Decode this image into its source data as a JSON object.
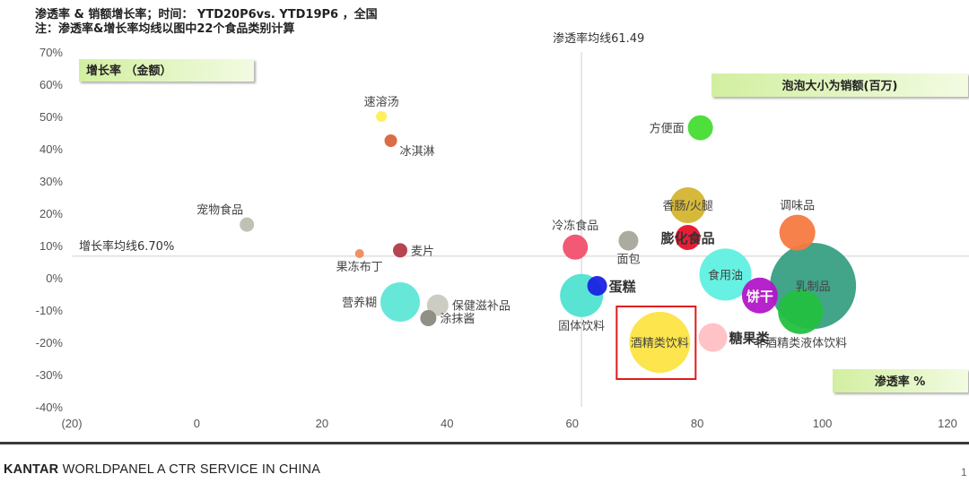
{
  "header": {
    "line1": "渗透率 & 销额增长率；时间： YTD20P6vs. YTD19P6 ，全国",
    "line2": "注：渗透率&增长率均线以图中22个食品类别计算"
  },
  "footer": {
    "brand_bold": "KANTAR",
    "brand_rest": " WORLDPANEL A CTR SERVICE IN CHINA",
    "page_number": "1"
  },
  "colors": {
    "tag_fill_start": "#d8f2a8",
    "tag_fill_end": "#eefadc",
    "highlight_box": "#e01b1b",
    "neg_tick": "#cc0000"
  },
  "chart_data": {
    "type": "scatter",
    "variant": "bubble",
    "title": "",
    "xlabel": "渗透率 %",
    "ylabel": "增长率 （金额）",
    "size_label": "泡泡大小为销额(百万)",
    "xlim": [
      -20,
      120
    ],
    "ylim": [
      -40,
      70
    ],
    "x_ticks": [
      -20,
      0,
      20,
      40,
      60,
      80,
      100,
      120
    ],
    "x_tick_labels": [
      "(20)",
      "0",
      "20",
      "40",
      "60",
      "80",
      "100",
      "120"
    ],
    "y_ticks": [
      -40,
      -30,
      -20,
      -10,
      0,
      10,
      20,
      30,
      40,
      50,
      60,
      70
    ],
    "y_tick_labels": [
      "-40%",
      "-30%",
      "-20%",
      "-10%",
      "0%",
      "10%",
      "20%",
      "30%",
      "40%",
      "50%",
      "60%",
      "70%"
    ],
    "reference_lines": {
      "vertical": {
        "value": 61.49,
        "label": "渗透率均线61.49"
      },
      "horizontal": {
        "value": 6.7,
        "label": "增长率均线6.70%"
      }
    },
    "highlighted": "酒精类饮料",
    "points": [
      {
        "name": "速溶汤",
        "x": 29.5,
        "y": 50,
        "size": 6,
        "color": "#ffee55",
        "label_pos": "top"
      },
      {
        "name": "冰淇淋",
        "x": 31,
        "y": 42.5,
        "size": 7,
        "color": "#d9643a",
        "label_pos": "bottom-right"
      },
      {
        "name": "宠物食品",
        "x": 8,
        "y": 16.5,
        "size": 8,
        "color": "#bdbdb0",
        "label_pos": "top-left"
      },
      {
        "name": "果冻布丁",
        "x": 26,
        "y": 7.5,
        "size": 5,
        "color": "#f08a5d",
        "label_pos": "bottom"
      },
      {
        "name": "麦片",
        "x": 32.5,
        "y": 8.5,
        "size": 8,
        "color": "#b23a48",
        "label_pos": "right"
      },
      {
        "name": "营养糊",
        "x": 32.5,
        "y": -7.5,
        "size": 22,
        "color": "#5ee6d6",
        "label_pos": "left"
      },
      {
        "name": "保健滋补品",
        "x": 38.5,
        "y": -8.5,
        "size": 12,
        "color": "#c9c9c0",
        "label_pos": "right"
      },
      {
        "name": "涂抹酱",
        "x": 37,
        "y": -12.5,
        "size": 9,
        "color": "#8a8a80",
        "label_pos": "right"
      },
      {
        "name": "冷冻食品",
        "x": 60.5,
        "y": 9.5,
        "size": 14,
        "color": "#f0506e",
        "label_pos": "top"
      },
      {
        "name": "面包",
        "x": 69,
        "y": 11.5,
        "size": 11,
        "color": "#a6a69a",
        "label_pos": "bottom"
      },
      {
        "name": "方便面",
        "x": 80.5,
        "y": 46.5,
        "size": 14,
        "color": "#44dd33",
        "label_pos": "left"
      },
      {
        "name": "香肠/火腿",
        "x": 78.5,
        "y": 22.5,
        "size": 20,
        "color": "#d4b430",
        "label_pos": "center"
      },
      {
        "name": "膨化食品",
        "x": 78.5,
        "y": 12.5,
        "size": 14,
        "color": "#e8102a",
        "label_pos": "center-bold"
      },
      {
        "name": "调味品",
        "x": 96,
        "y": 14,
        "size": 20,
        "color": "#f57a40",
        "label_pos": "top"
      },
      {
        "name": "食用油",
        "x": 84.5,
        "y": 1,
        "size": 29,
        "color": "#5ff0e0",
        "label_pos": "center"
      },
      {
        "name": "饼干",
        "x": 90,
        "y": -5.5,
        "size": 20,
        "color": "#b216c8",
        "label_pos": "center-white"
      },
      {
        "name": "乳制品",
        "x": 98.5,
        "y": -2.5,
        "size": 48,
        "color": "#2e9a7c",
        "label_pos": "center"
      },
      {
        "name": "非酒精类液体饮料",
        "x": 96.5,
        "y": -10.5,
        "size": 25,
        "color": "#23c040",
        "label_pos": "bottom"
      },
      {
        "name": "糖果类",
        "x": 82.5,
        "y": -18.5,
        "size": 16,
        "color": "#ffbfc4",
        "label_pos": "right-bold"
      },
      {
        "name": "酒精类饮料",
        "x": 74,
        "y": -20,
        "size": 34,
        "color": "#fce23a",
        "label_pos": "center"
      },
      {
        "name": "蛋糕",
        "x": 64,
        "y": -2.5,
        "size": 11,
        "color": "#1a22e0",
        "label_pos": "right-bold"
      },
      {
        "name": "固体饮料",
        "x": 61.5,
        "y": -5.5,
        "size": 24,
        "color": "#4fe2d0",
        "label_pos": "bottom"
      }
    ]
  }
}
